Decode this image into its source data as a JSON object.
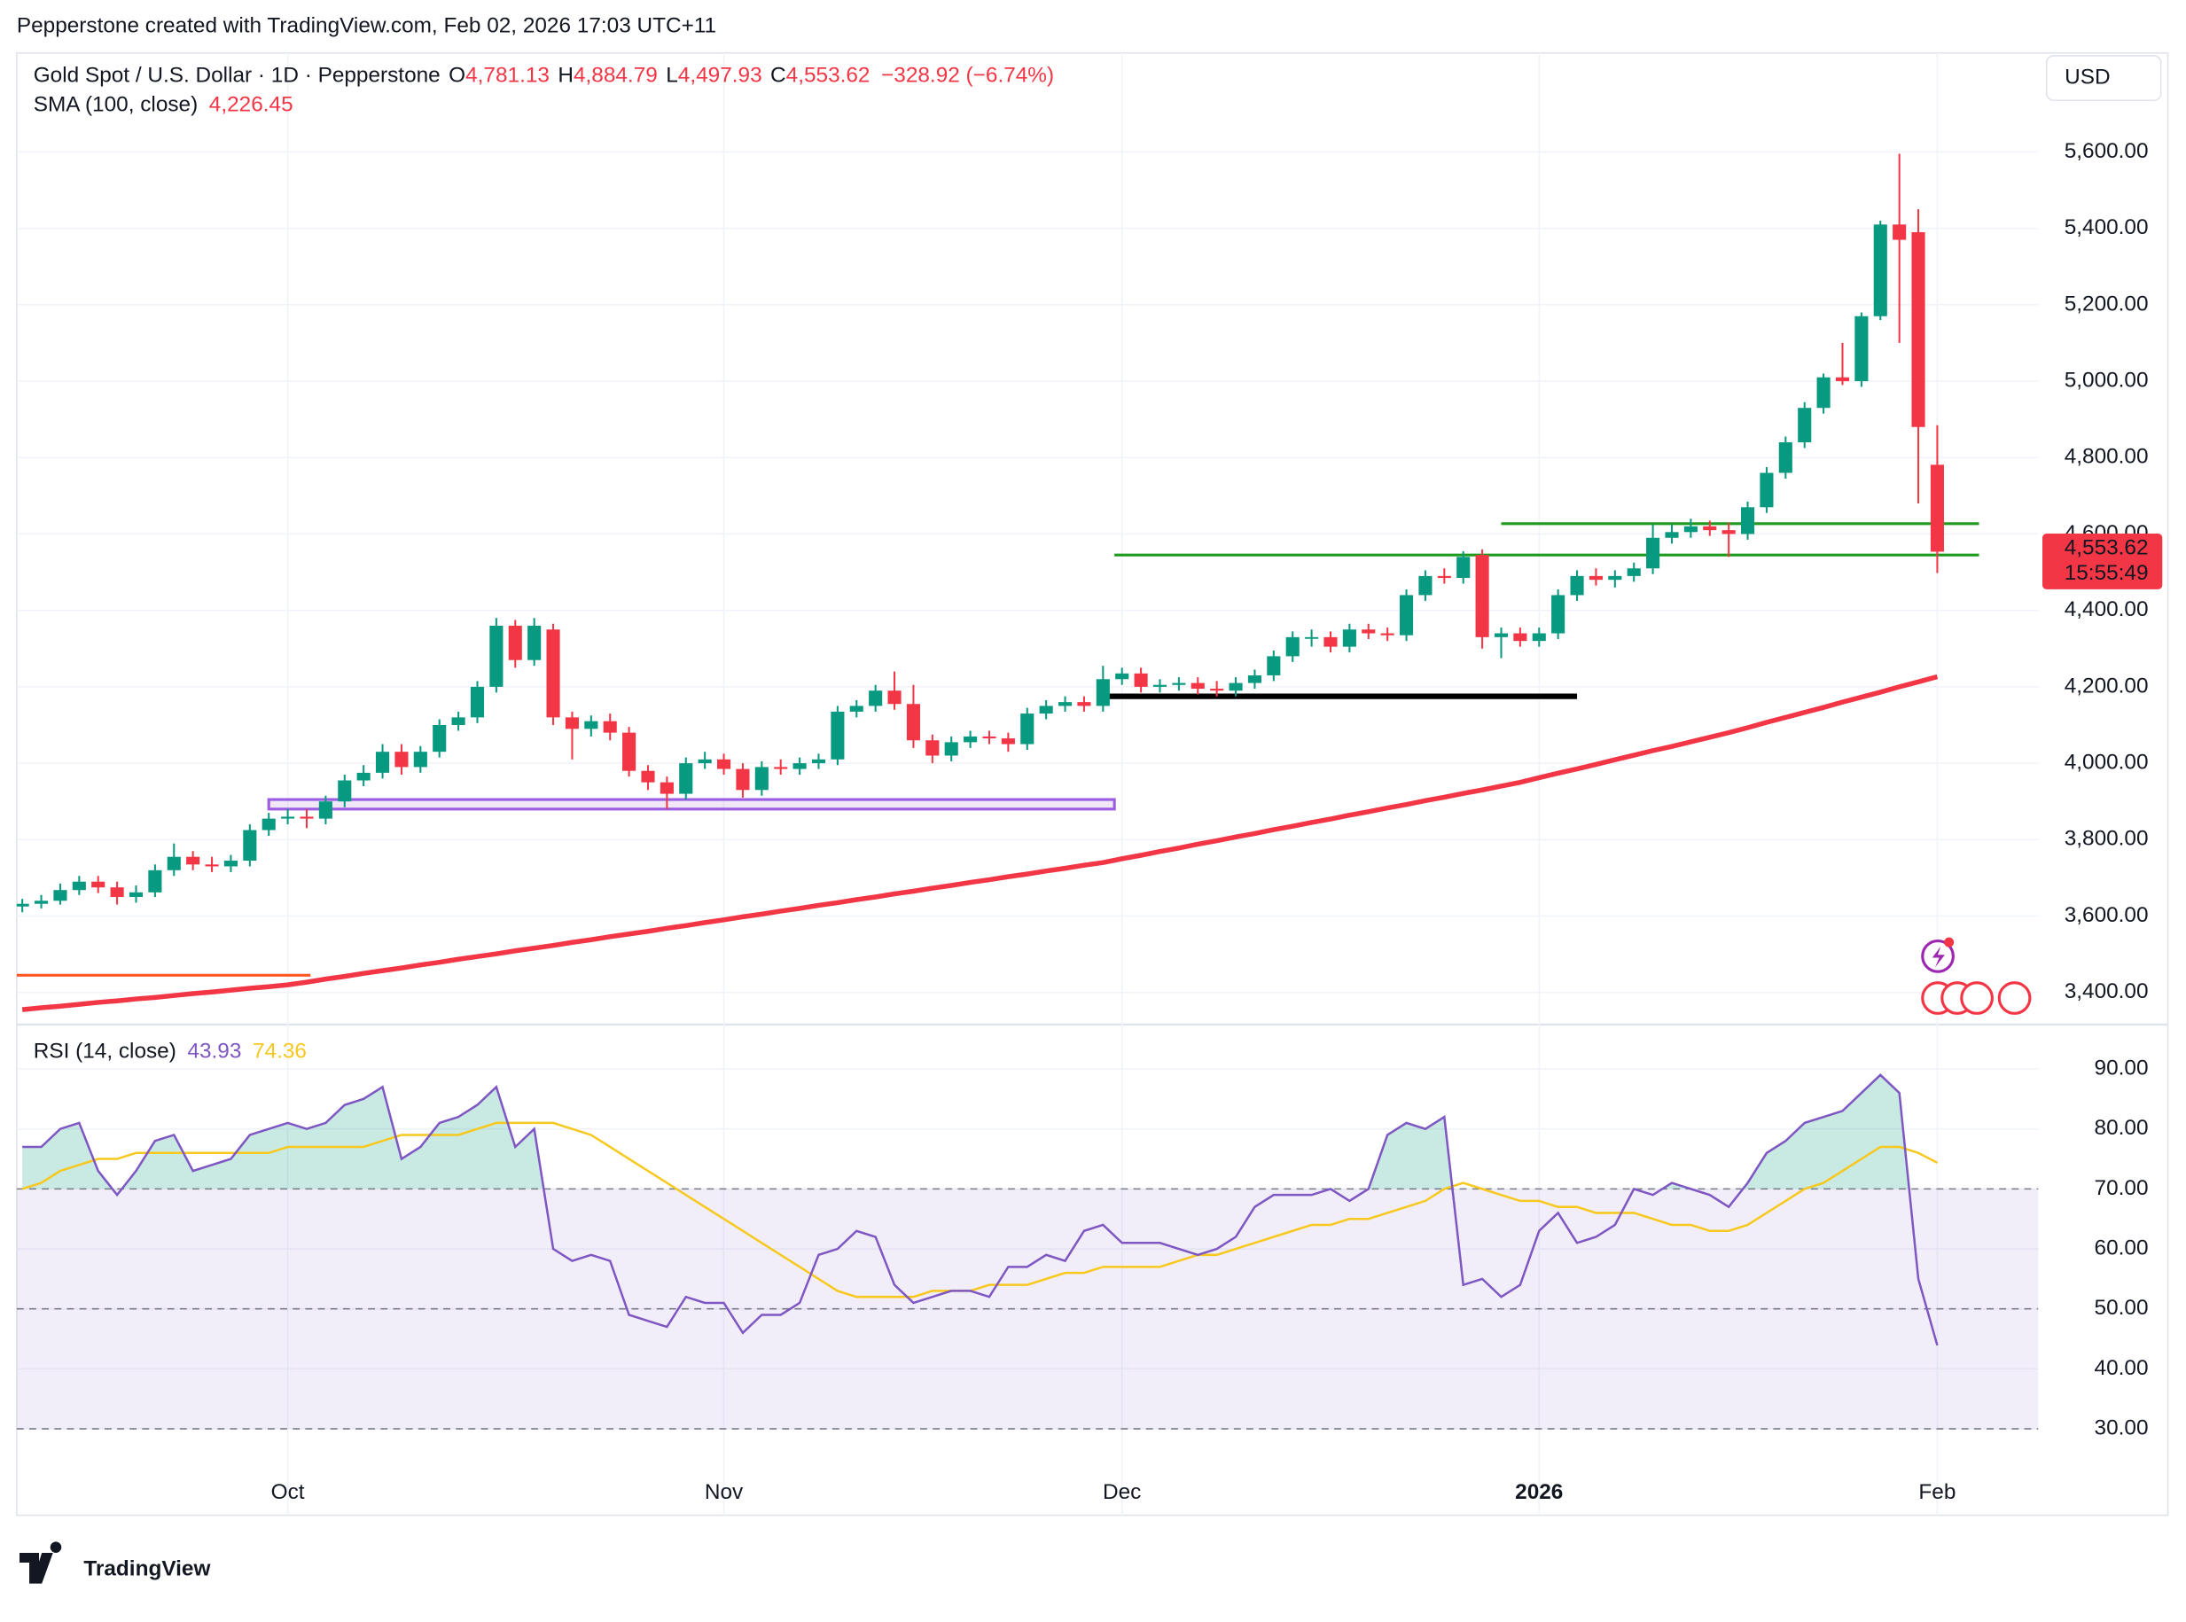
{
  "header": {
    "credit": "Pepperstone created with TradingView.com, Feb 02, 2026 17:03 UTC+11"
  },
  "footer": {
    "brand": "TradingView"
  },
  "chart_data": [
    {
      "type": "candlestick",
      "title": "Gold Spot / U.S. Dollar · 1D · Pepperstone",
      "ohlc": [
        {
          "label": "O",
          "value": "4,781.13"
        },
        {
          "label": "H",
          "value": "4,884.79"
        },
        {
          "label": "L",
          "value": "4,497.93"
        },
        {
          "label": "C",
          "value": "4,553.62"
        }
      ],
      "change": "−328.92 (−6.74%)",
      "currency": "USD",
      "last_price_label": "4,553.62",
      "countdown": "15:55:49",
      "categories": [
        null,
        null,
        null,
        null,
        null,
        null,
        null,
        null,
        null,
        null,
        null,
        null,
        null,
        null,
        "Oct",
        null,
        null,
        null,
        null,
        null,
        null,
        null,
        null,
        null,
        null,
        null,
        null,
        null,
        null,
        null,
        null,
        null,
        null,
        null,
        null,
        null,
        null,
        "Nov",
        null,
        null,
        null,
        null,
        null,
        null,
        null,
        null,
        null,
        null,
        null,
        null,
        null,
        null,
        null,
        null,
        null,
        null,
        null,
        null,
        "Dec",
        null,
        null,
        null,
        null,
        null,
        null,
        null,
        null,
        null,
        null,
        null,
        null,
        null,
        null,
        null,
        null,
        null,
        null,
        null,
        null,
        null,
        "2026",
        null,
        null,
        null,
        null,
        null,
        null,
        null,
        null,
        null,
        null,
        null,
        null,
        null,
        null,
        null,
        null,
        null,
        null,
        null,
        null,
        "Feb"
      ],
      "series": [
        {
          "up_color": "#089981",
          "down_color": "#f23645",
          "open": [
            3625,
            3632,
            3640,
            3668,
            3690,
            3675,
            3650,
            3662,
            3720,
            3755,
            3735,
            3730,
            3745,
            3825,
            3855,
            3860,
            3855,
            3900,
            3955,
            3975,
            4030,
            3990,
            4030,
            4100,
            4120,
            4200,
            4360,
            4270,
            4350,
            4120,
            4090,
            4110,
            4080,
            3980,
            3950,
            3920,
            4000,
            4010,
            3985,
            3930,
            3990,
            3985,
            4000,
            4010,
            4135,
            4150,
            4190,
            4155,
            4060,
            4020,
            4055,
            4070,
            4065,
            4050,
            4130,
            4150,
            4160,
            4150,
            4220,
            4235,
            4200,
            4205,
            4210,
            4195,
            4190,
            4210,
            4230,
            4280,
            4330,
            4330,
            4305,
            4350,
            4340,
            4335,
            4440,
            4490,
            4485,
            4545,
            4330,
            4340,
            4320,
            4340,
            4440,
            4490,
            4480,
            4490,
            4510,
            4590,
            4605,
            4620,
            4610,
            4600,
            4670,
            4760,
            4840,
            4930,
            5010,
            5000,
            5170,
            5410,
            5390,
            4781.13
          ],
          "high": [
            3645,
            3655,
            3685,
            3705,
            3705,
            3690,
            3680,
            3735,
            3790,
            3770,
            3755,
            3760,
            3840,
            3870,
            3880,
            3880,
            3915,
            3970,
            3995,
            4050,
            4050,
            4045,
            4115,
            4135,
            4215,
            4380,
            4375,
            4380,
            4365,
            4135,
            4125,
            4130,
            4095,
            3995,
            3965,
            4015,
            4030,
            4025,
            4000,
            4005,
            4010,
            4015,
            4025,
            4150,
            4165,
            4205,
            4240,
            4205,
            4075,
            4070,
            4085,
            4085,
            4080,
            4145,
            4165,
            4175,
            4175,
            4255,
            4250,
            4250,
            4220,
            4225,
            4225,
            4215,
            4225,
            4245,
            4295,
            4345,
            4350,
            4345,
            4365,
            4365,
            4355,
            4455,
            4505,
            4510,
            4555,
            4560,
            4355,
            4355,
            4355,
            4455,
            4505,
            4510,
            4505,
            4525,
            4625,
            4625,
            4640,
            4635,
            4630,
            4685,
            4775,
            4855,
            4945,
            5020,
            5100,
            5180,
            5420,
            5595,
            5450,
            4884.79
          ],
          "low": [
            3610,
            3620,
            3630,
            3655,
            3660,
            3630,
            3635,
            3650,
            3705,
            3720,
            3715,
            3715,
            3730,
            3810,
            3840,
            3830,
            3840,
            3885,
            3940,
            3960,
            3970,
            3975,
            4015,
            4085,
            4105,
            4185,
            4250,
            4255,
            4100,
            4010,
            4070,
            4060,
            3965,
            3930,
            3880,
            3905,
            3985,
            3970,
            3910,
            3915,
            3970,
            3970,
            3985,
            3995,
            4120,
            4135,
            4140,
            4040,
            4000,
            4005,
            4040,
            4050,
            4030,
            4035,
            4115,
            4135,
            4135,
            4135,
            4205,
            4185,
            4185,
            4190,
            4180,
            4175,
            4175,
            4195,
            4215,
            4265,
            4305,
            4290,
            4290,
            4325,
            4320,
            4320,
            4425,
            4470,
            4470,
            4300,
            4275,
            4305,
            4305,
            4325,
            4425,
            4465,
            4460,
            4475,
            4495,
            4575,
            4590,
            4595,
            4540,
            4585,
            4655,
            4745,
            4825,
            4915,
            4990,
            4985,
            5160,
            5100,
            4680,
            4497.93
          ],
          "close": [
            3632,
            3640,
            3668,
            3690,
            3675,
            3650,
            3662,
            3720,
            3755,
            3735,
            3730,
            3745,
            3825,
            3855,
            3860,
            3855,
            3900,
            3955,
            3975,
            4030,
            3990,
            4030,
            4100,
            4120,
            4200,
            4360,
            4270,
            4360,
            4120,
            4090,
            4110,
            4080,
            3980,
            3950,
            3920,
            4000,
            4010,
            3985,
            3930,
            3990,
            3985,
            4000,
            4010,
            4135,
            4150,
            4190,
            4155,
            4060,
            4020,
            4055,
            4070,
            4065,
            4050,
            4130,
            4150,
            4160,
            4150,
            4220,
            4235,
            4200,
            4205,
            4210,
            4195,
            4190,
            4210,
            4230,
            4280,
            4330,
            4330,
            4305,
            4350,
            4340,
            4335,
            4440,
            4490,
            4485,
            4540,
            4330,
            4340,
            4320,
            4340,
            4440,
            4490,
            4480,
            4490,
            4510,
            4590,
            4605,
            4620,
            4610,
            4600,
            4670,
            4760,
            4840,
            4930,
            5010,
            5000,
            5170,
            5410,
            5370,
            4880,
            4553.62
          ]
        },
        {
          "name": "SMA (100, close)",
          "value_label": "4,226.45",
          "color": "#f23645",
          "values": [
            3355,
            3360,
            3364,
            3369,
            3374,
            3378,
            3383,
            3387,
            3392,
            3397,
            3401,
            3406,
            3411,
            3415,
            3420,
            3427,
            3435,
            3442,
            3450,
            3457,
            3464,
            3472,
            3479,
            3487,
            3494,
            3501,
            3509,
            3516,
            3523,
            3531,
            3538,
            3546,
            3553,
            3560,
            3568,
            3575,
            3583,
            3590,
            3598,
            3605,
            3613,
            3620,
            3628,
            3635,
            3643,
            3650,
            3658,
            3665,
            3673,
            3680,
            3688,
            3695,
            3703,
            3710,
            3718,
            3725,
            3733,
            3740,
            3750,
            3759,
            3769,
            3778,
            3788,
            3797,
            3807,
            3816,
            3826,
            3835,
            3845,
            3854,
            3864,
            3873,
            3883,
            3892,
            3902,
            3911,
            3921,
            3930,
            3940,
            3950,
            3962,
            3974,
            3985,
            3997,
            4009,
            4021,
            4033,
            4044,
            4056,
            4068,
            4080,
            4093,
            4107,
            4120,
            4133,
            4146,
            4160,
            4173,
            4186,
            4200,
            4213,
            4226.45
          ]
        }
      ],
      "ylim": [
        3316,
        5859
      ],
      "yticks": [
        {
          "value": 3400,
          "label": "3,400.00"
        },
        {
          "value": 3600,
          "label": "3,600.00"
        },
        {
          "value": 3800,
          "label": "3,800.00"
        },
        {
          "value": 4000,
          "label": "4,000.00"
        },
        {
          "value": 4200,
          "label": "4,200.00"
        },
        {
          "value": 4400,
          "label": "4,400.00"
        },
        {
          "value": 4600,
          "label": "4,600.00"
        },
        {
          "value": 4800,
          "label": "4,800.00"
        },
        {
          "value": 5000,
          "label": "5,000.00"
        },
        {
          "value": 5200,
          "label": "5,200.00"
        },
        {
          "value": 5400,
          "label": "5,400.00"
        },
        {
          "value": 5600,
          "label": "5,600.00"
        }
      ],
      "grid": true,
      "drawings": [
        {
          "type": "hline",
          "value": 4627,
          "from": 78,
          "to": 103.2,
          "color": "#1e9a1e"
        },
        {
          "type": "hline",
          "value": 4545,
          "from": 57.6,
          "to": 103.2,
          "color": "#1e9a1e"
        },
        {
          "type": "bold-hline",
          "value": 4175,
          "from": 57,
          "to": 82,
          "color": "#000000"
        },
        {
          "type": "box",
          "values": [
            3880,
            3905
          ],
          "from": 13,
          "to": 57.6,
          "color": "#9c5de0"
        },
        {
          "type": "hline",
          "value": 3445,
          "from": -0.3,
          "to": 15.2,
          "color": "#ff5722"
        }
      ]
    },
    {
      "type": "line",
      "title": "RSI (14, close)",
      "series": [
        {
          "value_label": "43.93",
          "color": "#7e57c2",
          "values": [
            77,
            77,
            80,
            81,
            73,
            69,
            73,
            78,
            79,
            73,
            74,
            75,
            79,
            80,
            81,
            80,
            81,
            84,
            85,
            87,
            75,
            77,
            81,
            82,
            84,
            87,
            77,
            80,
            60,
            58,
            59,
            58,
            49,
            48,
            47,
            52,
            51,
            51,
            46,
            49,
            49,
            51,
            59,
            60,
            63,
            62,
            54,
            51,
            52,
            53,
            53,
            52,
            57,
            57,
            59,
            58,
            63,
            64,
            61,
            61,
            61,
            60,
            59,
            60,
            62,
            67,
            69,
            69,
            69,
            70,
            68,
            70,
            79,
            81,
            80,
            82,
            54,
            55,
            52,
            54,
            63,
            66,
            61,
            62,
            64,
            70,
            69,
            71,
            70,
            69,
            67,
            71,
            76,
            78,
            81,
            82,
            83,
            86,
            89,
            86,
            55,
            43.93
          ]
        },
        {
          "value_label": "74.36",
          "color": "#f7c81e",
          "values": [
            70,
            71,
            73,
            74,
            75,
            75,
            76,
            76,
            76,
            76,
            76,
            76,
            76,
            76,
            77,
            77,
            77,
            77,
            77,
            78,
            79,
            79,
            79,
            79,
            80,
            81,
            81,
            81,
            81,
            80,
            79,
            77,
            75,
            73,
            71,
            69,
            67,
            65,
            63,
            61,
            59,
            57,
            55,
            53,
            52,
            52,
            52,
            52,
            53,
            53,
            53,
            54,
            54,
            54,
            55,
            56,
            56,
            57,
            57,
            57,
            57,
            58,
            59,
            59,
            60,
            61,
            62,
            63,
            64,
            64,
            65,
            65,
            66,
            67,
            68,
            70,
            71,
            70,
            69,
            68,
            68,
            67,
            67,
            66,
            66,
            66,
            65,
            64,
            64,
            63,
            63,
            64,
            66,
            68,
            70,
            71,
            73,
            75,
            77,
            77,
            76,
            74.36
          ]
        }
      ],
      "levels": [
        70,
        50,
        30
      ],
      "ylim": [
        15.6,
        97.4
      ],
      "yticks": [
        {
          "value": 30,
          "label": "30.00"
        },
        {
          "value": 40,
          "label": "40.00"
        },
        {
          "value": 50,
          "label": "50.00"
        },
        {
          "value": 60,
          "label": "60.00"
        },
        {
          "value": 70,
          "label": "70.00"
        },
        {
          "value": 80,
          "label": "80.00"
        },
        {
          "value": 90,
          "label": "90.00"
        }
      ],
      "grid": true
    }
  ]
}
